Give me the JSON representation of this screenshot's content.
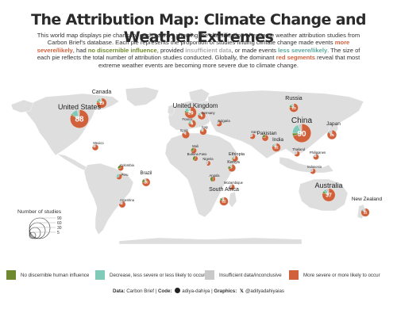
{
  "title": "The Attribution Map: Climate Change and Weather Extremes",
  "subtitle": {
    "p1": "This world map displays pie charts for each country showing the classification of extreme weather attribution studies from Carbon Brief's database. Each pie represents the proportion of studies finding climate change made events ",
    "more_severe": "more severe/likely",
    "p2": ", had ",
    "no_influence": "no discernible influence",
    "p3": ", provided ",
    "insufficient": "insufficient data",
    "p4": ", or made events ",
    "less_severe": "less severe/likely",
    "p5": ". The size of each pie reflects the total number of attribution studies conducted. Globally, the dominant ",
    "red_segments": "red segments",
    "p6": " reveal that most extreme weather events are becoming more severe due to climate change."
  },
  "colors": {
    "more_severe": "#d0613b",
    "no_influence": "#6f8a2e",
    "decrease": "#7fcab8",
    "insufficient": "#c9c9c9",
    "land": "#dedede",
    "ocean": "#ffffff"
  },
  "size_legend": {
    "title": "Number of studies",
    "values": [
      "90",
      "60",
      "30",
      "5"
    ]
  },
  "categories": [
    {
      "label": "No discernible human influence",
      "color": "#6f8a2e"
    },
    {
      "label": "Decrease, less severe or less likely to occur",
      "color": "#7fcab8"
    },
    {
      "label": "Insufficient data/inconclusive",
      "color": "#c9c9c9"
    },
    {
      "label": "More severe or more likely to occur",
      "color": "#d0613b"
    }
  ],
  "credits": {
    "data_label": "Data:",
    "data_value": "Carbon Brief",
    "code_label": "Code:",
    "code_icon": "github-icon",
    "code_value": "adiya-dahiya",
    "graphics_label": "Graphics:",
    "graphics_icon": "x-icon",
    "graphics_value": "@adityadahiyaias"
  },
  "chart_data": {
    "type": "pie",
    "encoding": "pie per country; size = total number of studies",
    "countries": [
      {
        "name": "United States",
        "total": 88,
        "label": "88",
        "more": 0.82,
        "none": 0.02,
        "decrease": 0.12,
        "insufficient": 0.04
      },
      {
        "name": "Canada",
        "total": 19,
        "label": "19",
        "more": 0.78,
        "none": 0.05,
        "decrease": 0.12,
        "insufficient": 0.05
      },
      {
        "name": "Mexico",
        "total": 4,
        "label": "",
        "more": 0.8,
        "none": 0,
        "decrease": 0,
        "insufficient": 0.2
      },
      {
        "name": "Colombia",
        "total": 3,
        "label": "",
        "more": 0.7,
        "none": 0.3,
        "decrease": 0,
        "insufficient": 0
      },
      {
        "name": "Peru",
        "total": 3,
        "label": "",
        "more": 0.7,
        "none": 0,
        "decrease": 0.3,
        "insufficient": 0
      },
      {
        "name": "Brazil",
        "total": 10,
        "label": "10",
        "more": 0.75,
        "none": 0.15,
        "decrease": 0,
        "insufficient": 0.1
      },
      {
        "name": "Argentina",
        "total": 5,
        "label": "",
        "more": 0.8,
        "none": 0,
        "decrease": 0,
        "insufficient": 0.2
      },
      {
        "name": "United Kingdom",
        "total": 29,
        "label": "29",
        "more": 0.75,
        "none": 0.05,
        "decrease": 0.1,
        "insufficient": 0.1
      },
      {
        "name": "Germany",
        "total": 9,
        "label": "9",
        "more": 0.8,
        "none": 0,
        "decrease": 0.1,
        "insufficient": 0.1
      },
      {
        "name": "France",
        "total": 9,
        "label": "9",
        "more": 0.75,
        "none": 0.05,
        "decrease": 0.1,
        "insufficient": 0.1
      },
      {
        "name": "Spain",
        "total": 8,
        "label": "",
        "more": 0.85,
        "none": 0,
        "decrease": 0,
        "insufficient": 0.15
      },
      {
        "name": "Italy",
        "total": 6,
        "label": "",
        "more": 0.8,
        "none": 0.05,
        "decrease": 0,
        "insufficient": 0.15
      },
      {
        "name": "Bulgaria",
        "total": 3,
        "label": "",
        "more": 0.7,
        "none": 0,
        "decrease": 0,
        "insufficient": 0.3
      },
      {
        "name": "Russia",
        "total": 13,
        "label": "13",
        "more": 0.78,
        "none": 0.08,
        "decrease": 0.06,
        "insufficient": 0.08
      },
      {
        "name": "Iran",
        "total": 3,
        "label": "",
        "more": 0.7,
        "none": 0,
        "decrease": 0,
        "insufficient": 0.3
      },
      {
        "name": "Pakistan",
        "total": 5,
        "label": "",
        "more": 0.8,
        "none": 0.2,
        "decrease": 0,
        "insufficient": 0
      },
      {
        "name": "India",
        "total": 12,
        "label": "12",
        "more": 0.8,
        "none": 0.05,
        "decrease": 0.05,
        "insufficient": 0.1
      },
      {
        "name": "China",
        "total": 90,
        "label": "90",
        "more": 0.7,
        "none": 0.05,
        "decrease": 0.18,
        "insufficient": 0.07
      },
      {
        "name": "Japan",
        "total": 15,
        "label": "15",
        "more": 0.85,
        "none": 0,
        "decrease": 0.05,
        "insufficient": 0.1
      },
      {
        "name": "Thailand",
        "total": 3,
        "label": "",
        "more": 0.7,
        "none": 0,
        "decrease": 0,
        "insufficient": 0.3
      },
      {
        "name": "Philippines",
        "total": 3,
        "label": "",
        "more": 0.8,
        "none": 0,
        "decrease": 0,
        "insufficient": 0.2
      },
      {
        "name": "Indonesia",
        "total": 3,
        "label": "",
        "more": 0.7,
        "none": 0,
        "decrease": 0,
        "insufficient": 0.3
      },
      {
        "name": "Mali",
        "total": 3,
        "label": "",
        "more": 0.7,
        "none": 0.3,
        "decrease": 0,
        "insufficient": 0
      },
      {
        "name": "Burkina Faso",
        "total": 2,
        "label": "",
        "more": 0.6,
        "none": 0.4,
        "decrease": 0,
        "insufficient": 0
      },
      {
        "name": "Nigeria",
        "total": 2,
        "label": "",
        "more": 0.6,
        "none": 0,
        "decrease": 0,
        "insufficient": 0.4
      },
      {
        "name": "Ethiopia",
        "total": 4,
        "label": "",
        "more": 0.7,
        "none": 0.1,
        "decrease": 0,
        "insufficient": 0.2
      },
      {
        "name": "Kenya",
        "total": 8,
        "label": "",
        "more": 0.7,
        "none": 0.15,
        "decrease": 0,
        "insufficient": 0.15
      },
      {
        "name": "Angola",
        "total": 2,
        "label": "",
        "more": 0.5,
        "none": 0.5,
        "decrease": 0,
        "insufficient": 0
      },
      {
        "name": "Mozambique",
        "total": 3,
        "label": "",
        "more": 0.7,
        "none": 0,
        "decrease": 0,
        "insufficient": 0.3
      },
      {
        "name": "South Africa",
        "total": 12,
        "label": "12",
        "more": 0.8,
        "none": 0.1,
        "decrease": 0,
        "insufficient": 0.1
      },
      {
        "name": "Australia",
        "total": 37,
        "label": "37",
        "more": 0.8,
        "none": 0.05,
        "decrease": 0.08,
        "insufficient": 0.07
      },
      {
        "name": "New Zealand",
        "total": 11,
        "label": "11",
        "more": 0.85,
        "none": 0,
        "decrease": 0.05,
        "insufficient": 0.1
      }
    ]
  }
}
